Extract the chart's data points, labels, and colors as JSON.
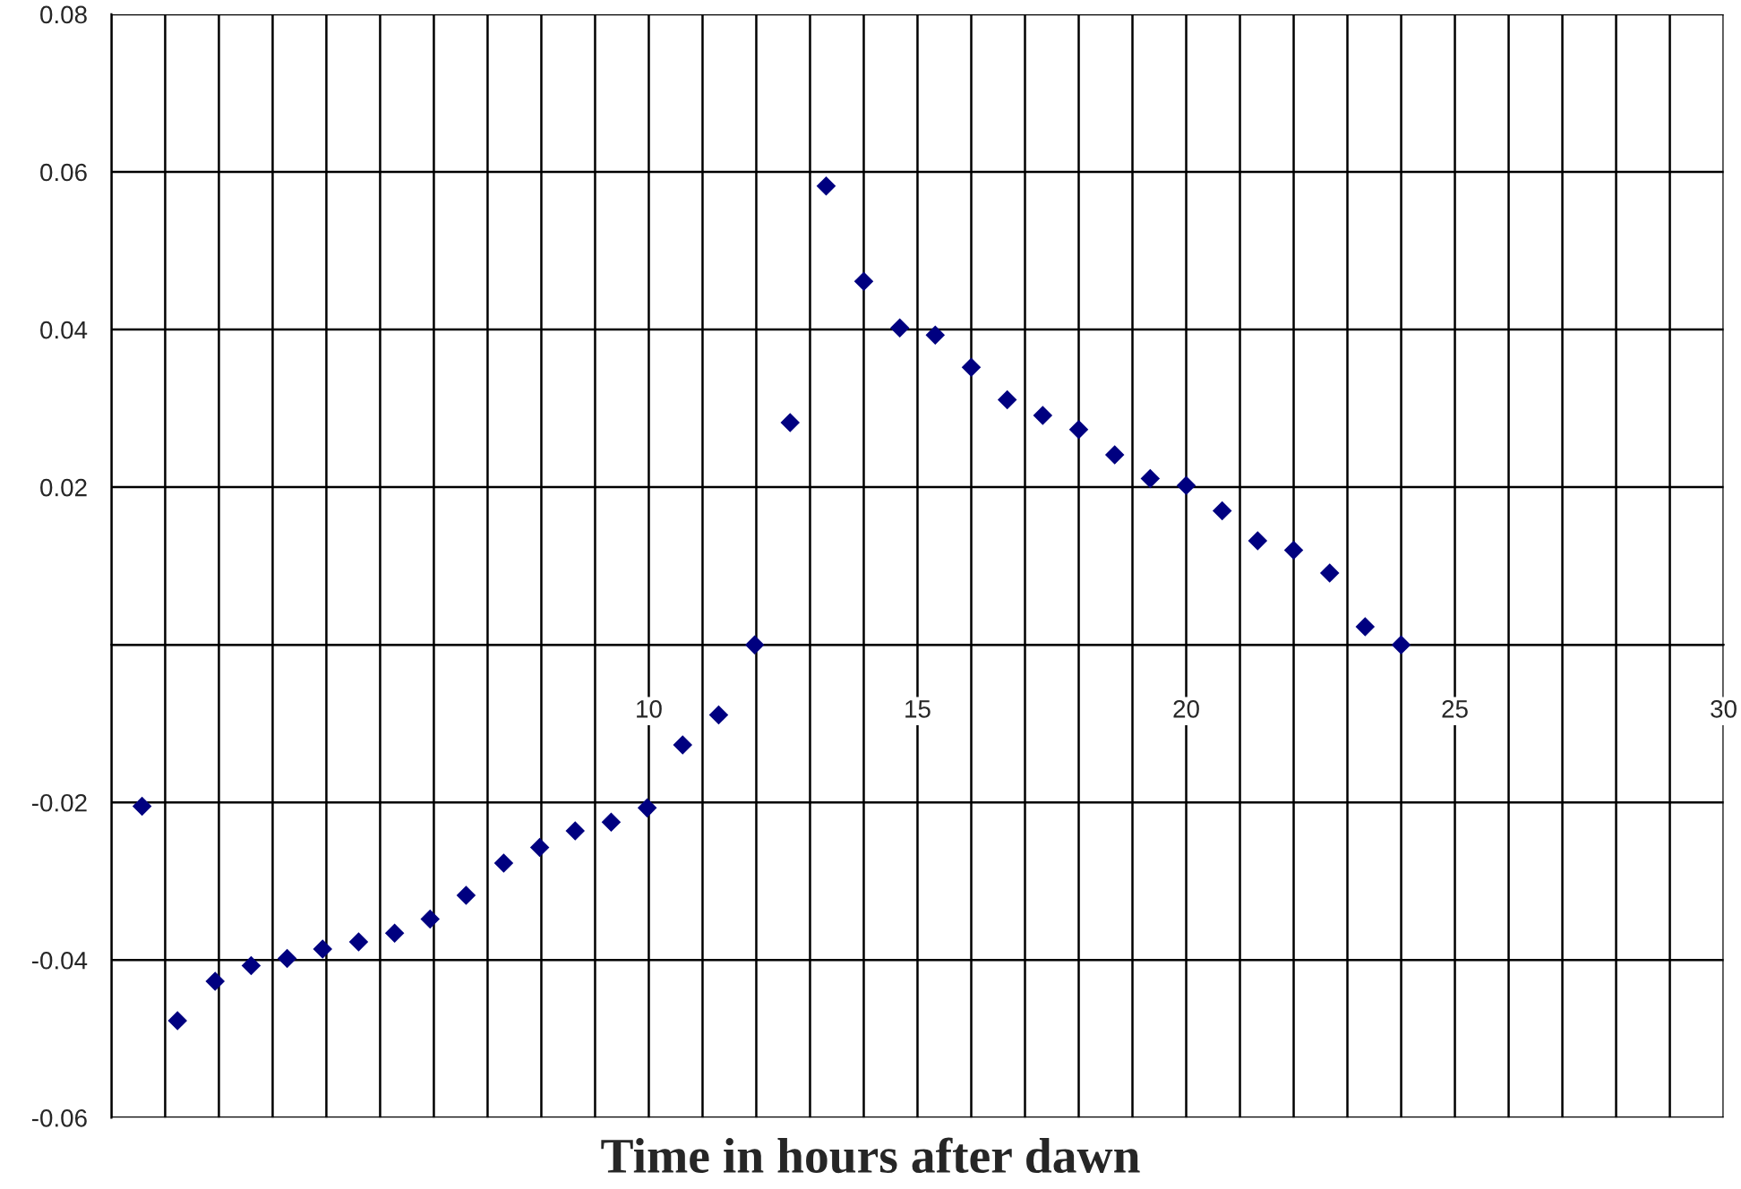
{
  "chart_data": {
    "type": "scatter",
    "xlabel": "Time in hours after dawn",
    "x": [
      0.57,
      1.23,
      1.93,
      2.6,
      3.27,
      3.93,
      4.6,
      5.27,
      5.93,
      6.6,
      7.3,
      7.97,
      8.63,
      9.3,
      9.97,
      10.63,
      11.3,
      11.97,
      12.63,
      13.3,
      14.0,
      14.67,
      15.33,
      16.0,
      16.67,
      17.33,
      18.0,
      18.67,
      19.33,
      20.0,
      20.67,
      21.33,
      22.0,
      22.67,
      23.33,
      24.0
    ],
    "series": [
      {
        "color": "#000080",
        "values": [
          -0.0205,
          -0.0477,
          -0.0427,
          -0.0407,
          -0.0398,
          -0.0386,
          -0.0377,
          -0.0366,
          -0.0348,
          -0.0318,
          -0.0277,
          -0.0257,
          -0.0236,
          -0.0225,
          -0.0207,
          -0.0127,
          -0.0089,
          0.0,
          0.0282,
          0.0582,
          0.0461,
          0.0402,
          0.0393,
          0.0352,
          0.0311,
          0.0291,
          0.0273,
          0.0241,
          0.0211,
          0.0202,
          0.017,
          0.0132,
          0.012,
          0.0091,
          0.0023,
          0.0
        ]
      }
    ],
    "xlim": [
      0,
      30
    ],
    "xticks": [
      {
        "value": 0,
        "label": null
      },
      {
        "value": 1,
        "label": null
      },
      {
        "value": 2,
        "label": null
      },
      {
        "value": 3,
        "label": null
      },
      {
        "value": 4,
        "label": null
      },
      {
        "value": 5,
        "label": null
      },
      {
        "value": 6,
        "label": null
      },
      {
        "value": 7,
        "label": null
      },
      {
        "value": 8,
        "label": null
      },
      {
        "value": 9,
        "label": null
      },
      10,
      {
        "value": 11,
        "label": null
      },
      {
        "value": 12,
        "label": null
      },
      {
        "value": 13,
        "label": null
      },
      {
        "value": 14,
        "label": null
      },
      15,
      {
        "value": 16,
        "label": null
      },
      {
        "value": 17,
        "label": null
      },
      {
        "value": 18,
        "label": null
      },
      {
        "value": 19,
        "label": null
      },
      20,
      {
        "value": 21,
        "label": null
      },
      {
        "value": 22,
        "label": null
      },
      {
        "value": 23,
        "label": null
      },
      {
        "value": 24,
        "label": null
      },
      25,
      {
        "value": 26,
        "label": null
      },
      {
        "value": 27,
        "label": null
      },
      {
        "value": 28,
        "label": null
      },
      {
        "value": 29,
        "label": null
      },
      30
    ],
    "ylim": [
      -0.06,
      0.08
    ],
    "yticks": [
      -0.06,
      -0.04,
      -0.02,
      {
        "value": 0,
        "label": null
      },
      0.02,
      0.04,
      0.06,
      0.08
    ],
    "grid": true,
    "marker": "diamond",
    "legend": false
  }
}
